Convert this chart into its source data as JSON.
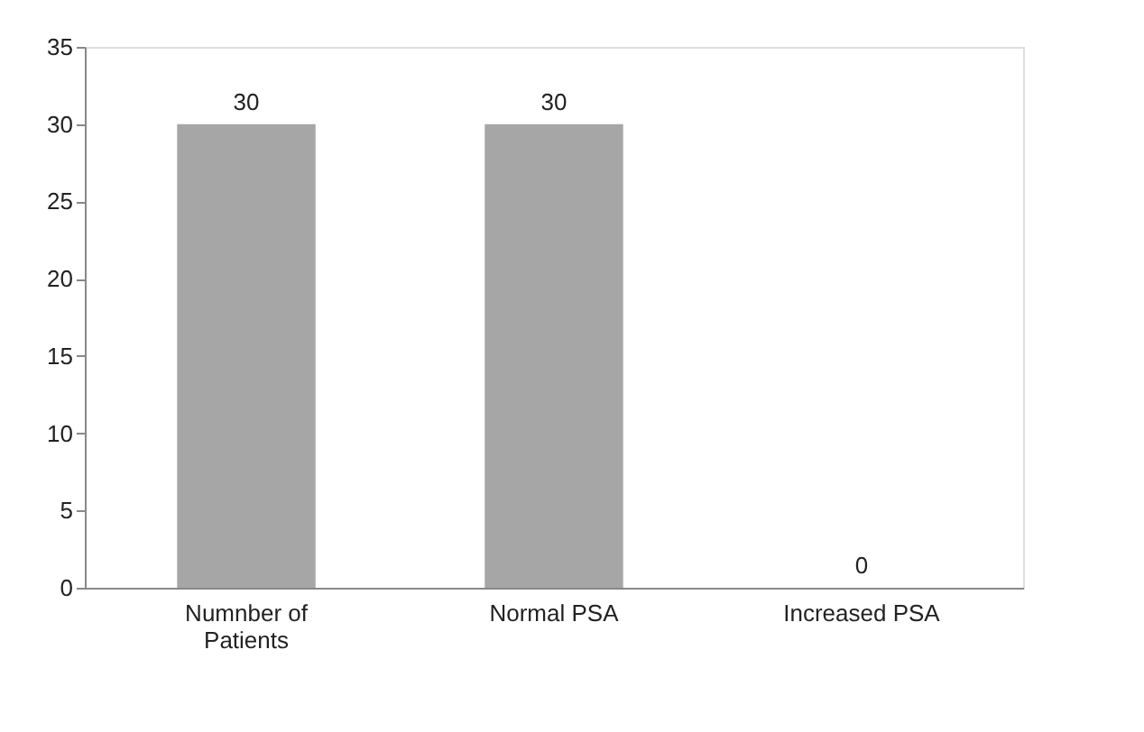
{
  "chart_data": {
    "type": "bar",
    "categories": [
      "Numnber of Patients",
      "Normal PSA",
      "Increased PSA"
    ],
    "values": [
      30,
      30,
      0
    ],
    "color": "#a6a6a6",
    "ylim": [
      0,
      35
    ],
    "yticks": [
      0,
      5,
      10,
      15,
      20,
      25,
      30,
      35
    ],
    "data_labels": true,
    "grid": false
  }
}
